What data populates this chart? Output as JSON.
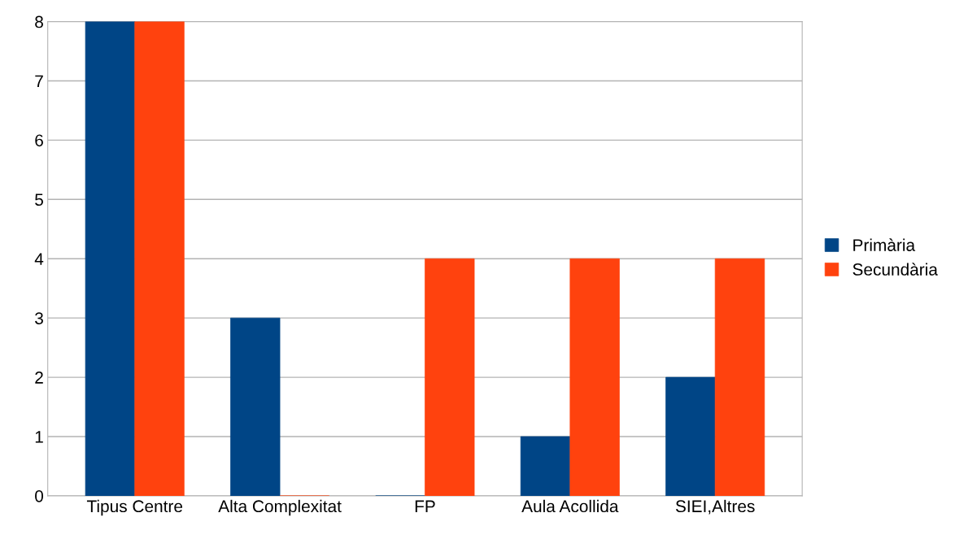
{
  "chart_data": {
    "type": "bar",
    "categories": [
      "Tipus Centre",
      "Alta Complexitat",
      "FP",
      "Aula Acollida",
      "SIEI,Altres"
    ],
    "series": [
      {
        "name": "Primària",
        "color": "#004586",
        "values": [
          8,
          3,
          0,
          1,
          2
        ]
      },
      {
        "name": "Secundària",
        "color": "#ff420e",
        "values": [
          8,
          0,
          4,
          4,
          4
        ]
      }
    ],
    "ylim": [
      0,
      8
    ],
    "yticks": [
      0,
      1,
      2,
      3,
      4,
      5,
      6,
      7,
      8
    ],
    "grid": "y",
    "legend": "right"
  }
}
